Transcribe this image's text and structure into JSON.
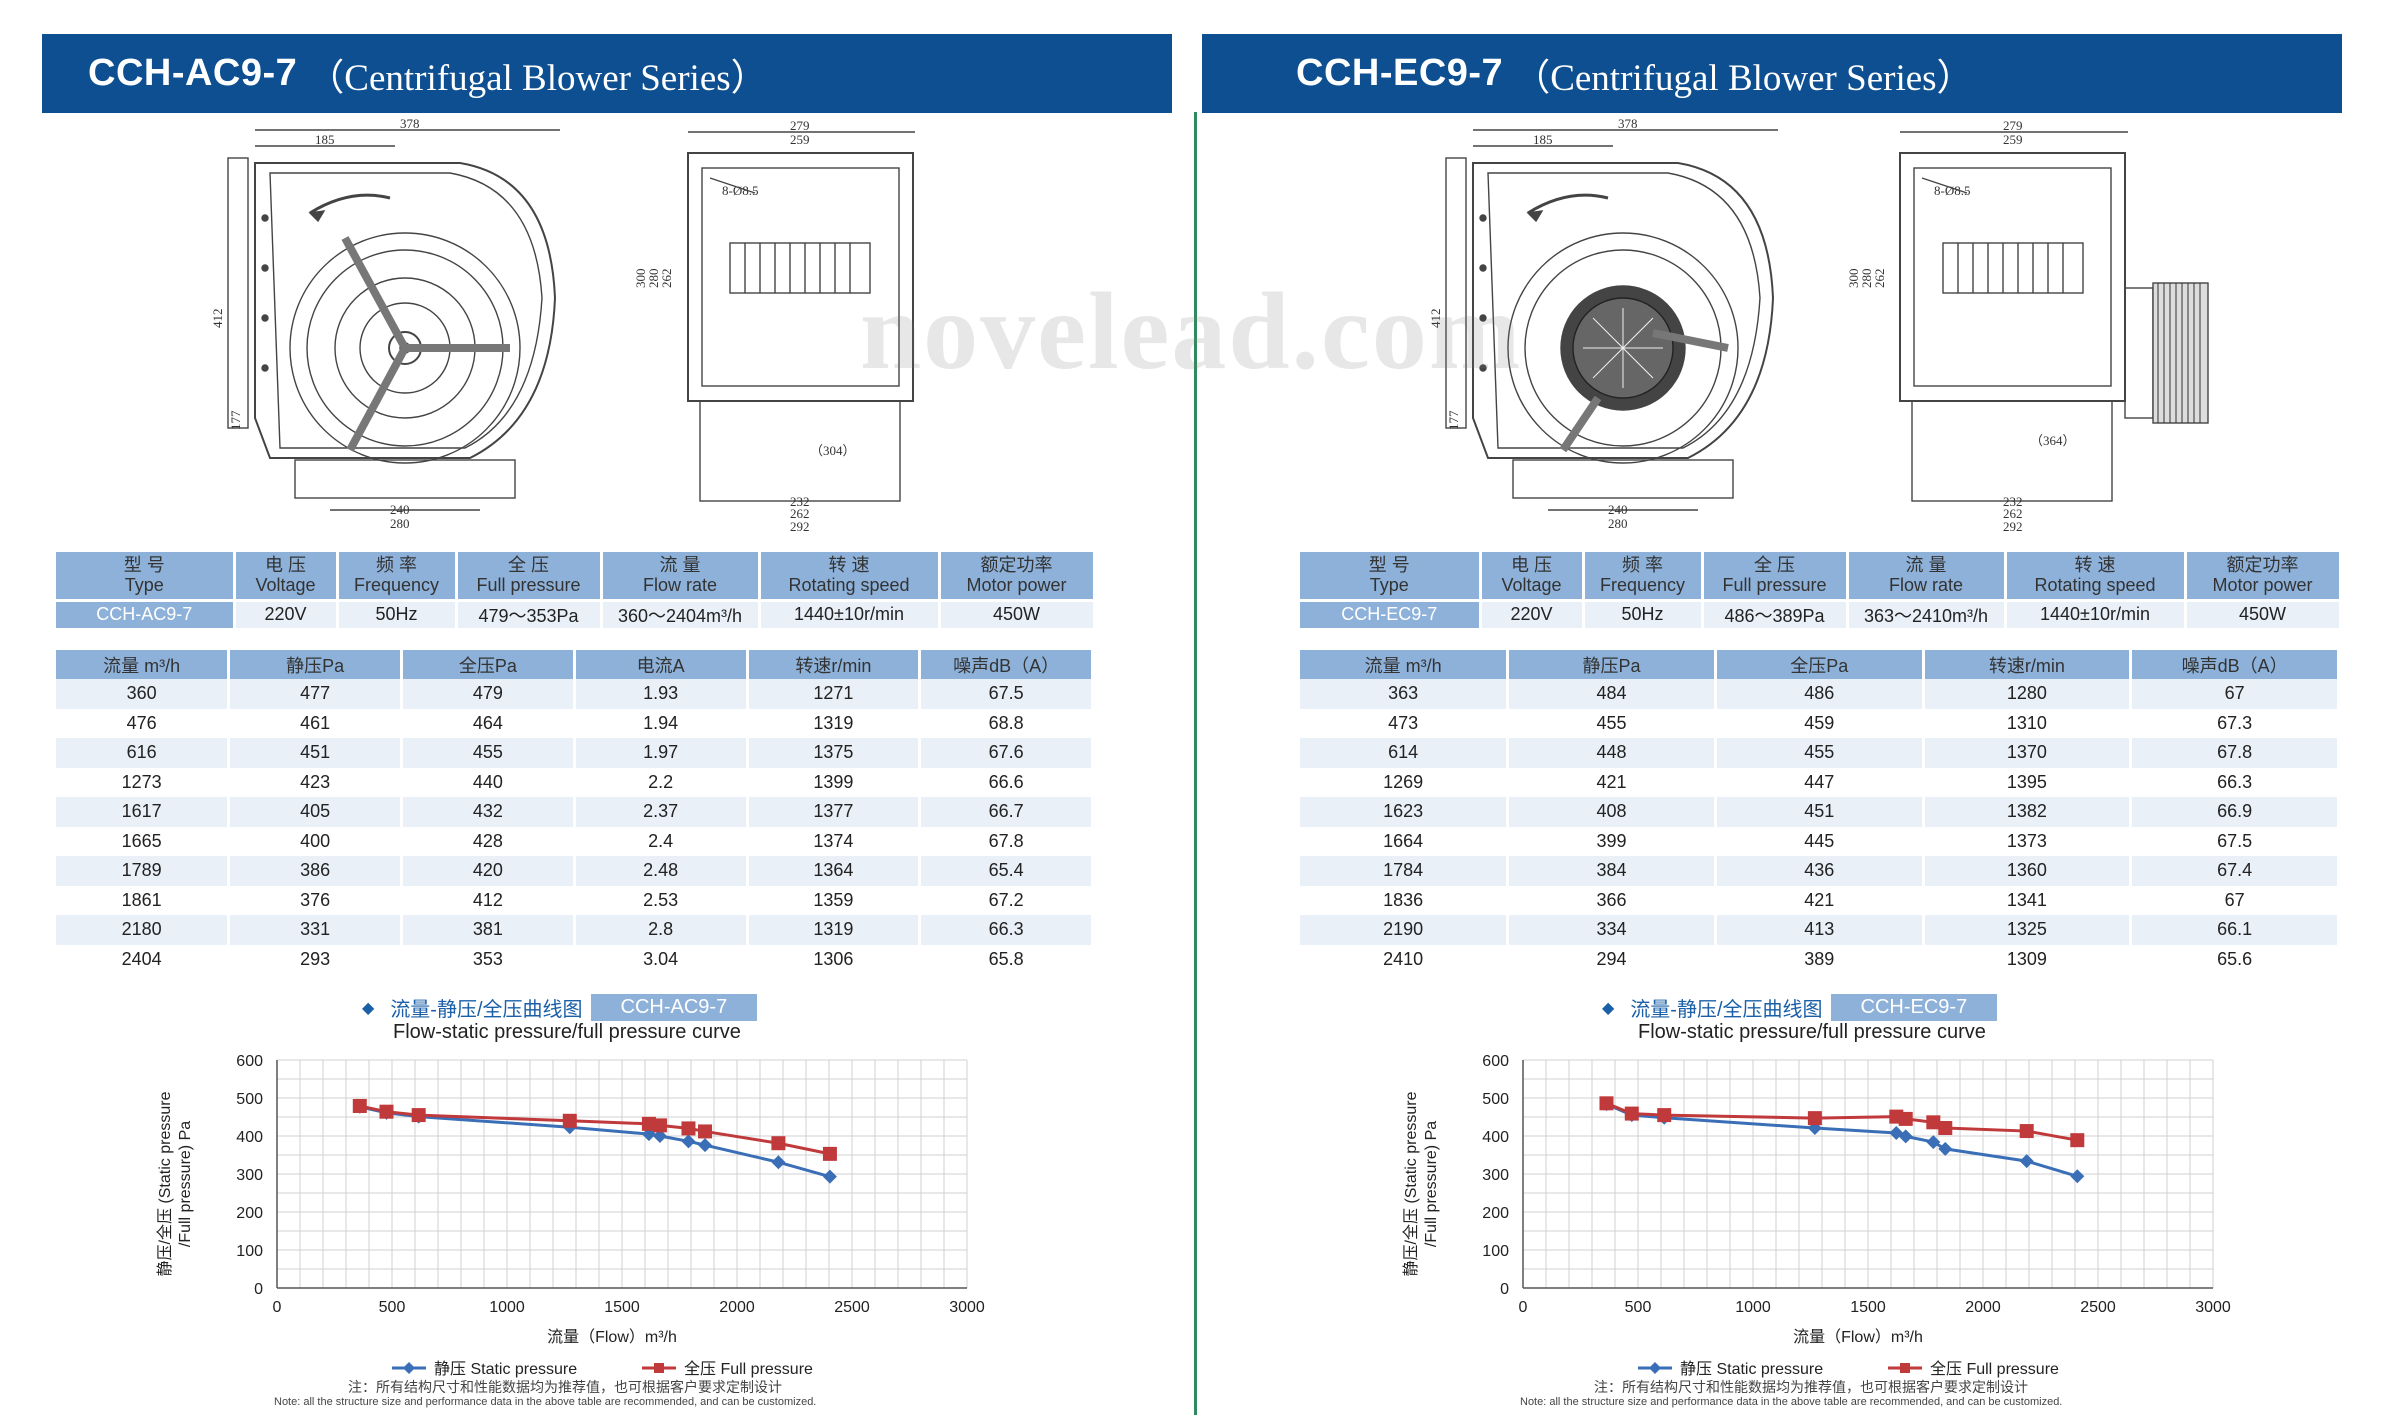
{
  "watermark": "novelead.com",
  "spec_headers": [
    {
      "cn": "型 号",
      "en": "Type"
    },
    {
      "cn": "电 压",
      "en": "Voltage"
    },
    {
      "cn": "频 率",
      "en": "Frequency"
    },
    {
      "cn": "全 压",
      "en": "Full pressure"
    },
    {
      "cn": "流 量",
      "en": "Flow rate"
    },
    {
      "cn": "转 速",
      "en": "Rotating speed"
    },
    {
      "cn": "额定功率",
      "en": "Motor power"
    }
  ],
  "legend": {
    "static": "静压 Static pressure",
    "full": "全压 Full pressure"
  },
  "chart_title_cn": "流量-静压/全压曲线图",
  "chart_title_en": "Flow-static pressure/full pressure curve",
  "xlabel": "流量（Flow）m³/h",
  "ylabel_cn": "静压/全压 (Static pressure",
  "ylabel_en": "/Full pressure) Pa",
  "note_cn": "注：所有结构尺寸和性能数据均为推荐值，也可根据客户要求定制设计",
  "note_en": "Note: all the structure size and performance data in the above table are recommended, and can be customized.",
  "drawing_dims": {
    "w378": "378",
    "w185": "185",
    "h412": "412",
    "h177": "177",
    "b240": "240",
    "b280": "280",
    "s279": "279",
    "s259": "259",
    "s300": "300",
    "s280": "280",
    "s262": "262",
    "holes": "8-Ø8.5",
    "sb232": "232",
    "sb262": "262",
    "sb292": "292"
  },
  "left": {
    "model": "CCH-AC9-7",
    "series": "（Centrifugal Blower Series）",
    "side_depth": "（304）",
    "spec_values": [
      "CCH-AC9-7",
      "220V",
      "50Hz",
      "479～353Pa",
      "360～2404m³/h",
      "1440±10r/min",
      "450W"
    ],
    "perf_headers": [
      "流量 m³/h",
      "静压Pa",
      "全压Pa",
      "电流A",
      "转速r/min",
      "噪声dB（A）"
    ],
    "rows": [
      [
        "360",
        "477",
        "479",
        "1.93",
        "1271",
        "67.5"
      ],
      [
        "476",
        "461",
        "464",
        "1.94",
        "1319",
        "68.8"
      ],
      [
        "616",
        "451",
        "455",
        "1.97",
        "1375",
        "67.6"
      ],
      [
        "1273",
        "423",
        "440",
        "2.2",
        "1399",
        "66.6"
      ],
      [
        "1617",
        "405",
        "432",
        "2.37",
        "1377",
        "66.7"
      ],
      [
        "1665",
        "400",
        "428",
        "2.4",
        "1374",
        "67.8"
      ],
      [
        "1789",
        "386",
        "420",
        "2.48",
        "1364",
        "65.4"
      ],
      [
        "1861",
        "376",
        "412",
        "2.53",
        "1359",
        "67.2"
      ],
      [
        "2180",
        "331",
        "381",
        "2.8",
        "1319",
        "66.3"
      ],
      [
        "2404",
        "293",
        "353",
        "3.04",
        "1306",
        "65.8"
      ]
    ]
  },
  "right": {
    "model": "CCH-EC9-7",
    "series": "（Centrifugal Blower Series）",
    "side_depth": "（364）",
    "spec_values": [
      "CCH-EC9-7",
      "220V",
      "50Hz",
      "486～389Pa",
      "363～2410m³/h",
      "1440±10r/min",
      "450W"
    ],
    "perf_headers": [
      "流量 m³/h",
      "静压Pa",
      "全压Pa",
      "转速r/min",
      "噪声dB（A）"
    ],
    "rows": [
      [
        "363",
        "484",
        "486",
        "1280",
        "67"
      ],
      [
        "473",
        "455",
        "459",
        "1310",
        "67.3"
      ],
      [
        "614",
        "448",
        "455",
        "1370",
        "67.8"
      ],
      [
        "1269",
        "421",
        "447",
        "1395",
        "66.3"
      ],
      [
        "1623",
        "408",
        "451",
        "1382",
        "66.9"
      ],
      [
        "1664",
        "399",
        "445",
        "1373",
        "67.5"
      ],
      [
        "1784",
        "384",
        "436",
        "1360",
        "67.4"
      ],
      [
        "1836",
        "366",
        "421",
        "1341",
        "67"
      ],
      [
        "2190",
        "334",
        "413",
        "1325",
        "66.1"
      ],
      [
        "2410",
        "294",
        "389",
        "1309",
        "65.6"
      ]
    ]
  },
  "chart_data": [
    {
      "type": "line",
      "title": "",
      "xlabel": "流量（Flow）m³/h",
      "ylabel": "静压/全压 (Static pressure /Full pressure) Pa",
      "xlim": [
        0,
        3000
      ],
      "ylim": [
        0,
        600
      ],
      "xticks": [
        0,
        500,
        1000,
        1500,
        2000,
        2500,
        3000
      ],
      "yticks": [
        0,
        100,
        200,
        300,
        400,
        500,
        600
      ],
      "grid": true,
      "legend": "bottom",
      "series": [
        {
          "name": "静压 Static pressure",
          "color": "#3a6fb7",
          "marker": "diamond",
          "x": [
            360,
            476,
            616,
            1273,
            1617,
            1665,
            1789,
            1861,
            2180,
            2404
          ],
          "y": [
            477,
            461,
            451,
            423,
            405,
            400,
            386,
            376,
            331,
            293
          ]
        },
        {
          "name": "全压 Full pressure",
          "color": "#c0393b",
          "marker": "square",
          "x": [
            360,
            476,
            616,
            1273,
            1617,
            1665,
            1789,
            1861,
            2180,
            2404
          ],
          "y": [
            479,
            464,
            455,
            440,
            432,
            428,
            420,
            412,
            381,
            353
          ]
        }
      ]
    },
    {
      "type": "line",
      "title": "",
      "xlabel": "流量（Flow）m³/h",
      "ylabel": "静压/全压 (Static pressure /Full pressure) Pa",
      "xlim": [
        0,
        3000
      ],
      "ylim": [
        0,
        600
      ],
      "xticks": [
        0,
        500,
        1000,
        1500,
        2000,
        2500,
        3000
      ],
      "yticks": [
        0,
        100,
        200,
        300,
        400,
        500,
        600
      ],
      "grid": true,
      "legend": "bottom",
      "series": [
        {
          "name": "静压 Static pressure",
          "color": "#3a6fb7",
          "marker": "diamond",
          "x": [
            363,
            473,
            614,
            1269,
            1623,
            1664,
            1784,
            1836,
            2190,
            2410
          ],
          "y": [
            484,
            455,
            448,
            421,
            408,
            399,
            384,
            366,
            334,
            294
          ]
        },
        {
          "name": "全压 Full pressure",
          "color": "#c0393b",
          "marker": "square",
          "x": [
            363,
            473,
            614,
            1269,
            1623,
            1664,
            1784,
            1836,
            2190,
            2410
          ],
          "y": [
            486,
            459,
            455,
            447,
            451,
            445,
            436,
            421,
            413,
            389
          ]
        }
      ]
    }
  ]
}
